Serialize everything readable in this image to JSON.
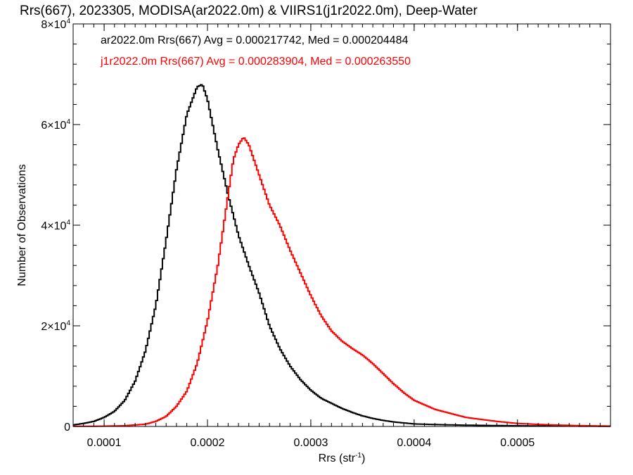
{
  "chart_data": {
    "type": "line",
    "title": "Rrs(667), 2023305, MODISA(ar2022.0m) & VIIRS1(j1r2022.0m), Deep-Water",
    "xlabel": "Rrs (str",
    "xlabel_sup": "-1",
    "xlabel_end": ")",
    "ylabel": "Number of Observations",
    "xlim": [
      7e-05,
      0.00059
    ],
    "ylim": [
      0,
      80000
    ],
    "x_ticks": [
      {
        "value": 0.0001,
        "label": "0.0001"
      },
      {
        "value": 0.0002,
        "label": "0.0002"
      },
      {
        "value": 0.0003,
        "label": "0.0003"
      },
      {
        "value": 0.0004,
        "label": "0.0004"
      },
      {
        "value": 0.0005,
        "label": "0.0005"
      }
    ],
    "y_ticks": [
      {
        "value": 0,
        "mant": "0",
        "exp": ""
      },
      {
        "value": 20000,
        "mant": "2×10",
        "exp": "4"
      },
      {
        "value": 40000,
        "mant": "4×10",
        "exp": "4"
      },
      {
        "value": 60000,
        "mant": "6×10",
        "exp": "4"
      },
      {
        "value": 80000,
        "mant": "8×10",
        "exp": "4"
      }
    ],
    "grid": false,
    "legend_position": "top-left",
    "series": [
      {
        "legend": "ar2022.0m Rrs(667) Avg = 0.000217742, Med = 0.000204484",
        "color": "#000000",
        "x": [
          7e-05,
          8e-05,
          9e-05,
          0.0001,
          0.00011,
          0.00012,
          0.00013,
          0.00014,
          0.00015,
          0.00016,
          0.00017,
          0.00018,
          0.00019,
          0.000195,
          0.0002,
          0.00021,
          0.00022,
          0.00023,
          0.00024,
          0.00025,
          0.00026,
          0.00027,
          0.00028,
          0.00029,
          0.0003,
          0.00031,
          0.00032,
          0.00033,
          0.00034,
          0.00035,
          0.00036,
          0.00037,
          0.00038,
          0.00039,
          0.0004,
          0.00042,
          0.00045,
          0.00048,
          0.00052,
          0.00055,
          0.00059
        ],
        "y": [
          300,
          600,
          1000,
          1800,
          3000,
          5200,
          9000,
          15000,
          24000,
          37000,
          51000,
          62000,
          67500,
          68000,
          65000,
          55000,
          46000,
          38000,
          32000,
          26500,
          20000,
          15500,
          12000,
          9300,
          7200,
          5600,
          4600,
          3600,
          2800,
          2100,
          1600,
          1200,
          900,
          700,
          500,
          380,
          250,
          170,
          100,
          70,
          40
        ]
      },
      {
        "legend": "j1r2022.0m Rrs(667) Avg = 0.000283904, Med = 0.000263550",
        "color": "#ff0000",
        "x": [
          7e-05,
          0.0001,
          0.00012,
          0.00014,
          0.00015,
          0.00016,
          0.00017,
          0.00018,
          0.00019,
          0.0002,
          0.00021,
          0.00022,
          0.000225,
          0.00023,
          0.000235,
          0.00024,
          0.00025,
          0.00026,
          0.00027,
          0.00028,
          0.00029,
          0.0003,
          0.00031,
          0.00032,
          0.00033,
          0.00034,
          0.00035,
          0.00036,
          0.00037,
          0.00038,
          0.00039,
          0.0004,
          0.00042,
          0.00045,
          0.00048,
          0.0005,
          0.00053,
          0.00056,
          0.00059
        ],
        "y": [
          20,
          60,
          150,
          450,
          1000,
          2000,
          4000,
          7000,
          12500,
          21000,
          32000,
          46000,
          53000,
          56000,
          57500,
          56000,
          50000,
          44000,
          40000,
          35000,
          30500,
          26000,
          22000,
          19000,
          17000,
          15500,
          14200,
          12500,
          10500,
          8500,
          6700,
          5200,
          3400,
          1800,
          1000,
          600,
          320,
          160,
          80
        ]
      }
    ]
  }
}
